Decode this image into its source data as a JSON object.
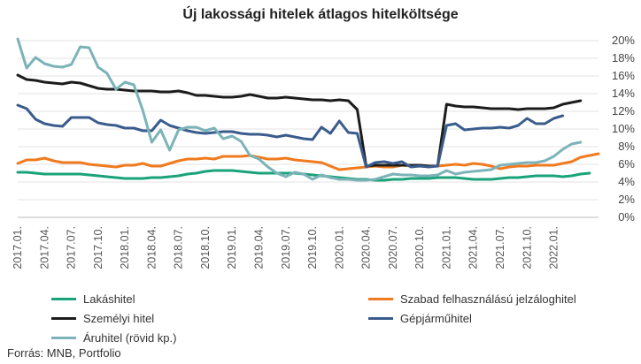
{
  "title": "Új lakossági hitelek átlagos hitelköltsége",
  "source": "Forrás: MNB, Portfolio",
  "chart_data": {
    "type": "line",
    "ylim": [
      0,
      20
    ],
    "yticks": [
      "0%",
      "2%",
      "4%",
      "6%",
      "8%",
      "10%",
      "12%",
      "14%",
      "16%",
      "18%",
      "20%"
    ],
    "xtick_labels": [
      "2017.01.",
      "2017.04.",
      "2017.07.",
      "2017.10.",
      "2018.01.",
      "2018.04.",
      "2018.07.",
      "2018.10.",
      "2019.01.",
      "2019.04.",
      "2019.07.",
      "2019.10.",
      "2020.01.",
      "2020.04.",
      "2020.07.",
      "2020.10.",
      "2021.01.",
      "2021.04.",
      "2021.07.",
      "2021.10.",
      "2022.01."
    ],
    "grid": true,
    "legend_position": "bottom",
    "series": [
      {
        "name": "Lakáshitel",
        "color": "#1aa37a",
        "values": [
          5.1,
          5.1,
          5.0,
          4.9,
          4.9,
          4.9,
          4.9,
          4.9,
          4.8,
          4.7,
          4.6,
          4.5,
          4.4,
          4.4,
          4.4,
          4.5,
          4.5,
          4.6,
          4.7,
          4.9,
          5.0,
          5.2,
          5.3,
          5.3,
          5.3,
          5.2,
          5.1,
          5.0,
          5.0,
          5.0,
          5.0,
          5.0,
          4.9,
          4.8,
          4.7,
          4.6,
          4.5,
          4.4,
          4.3,
          4.3,
          4.2,
          4.2,
          4.3,
          4.3,
          4.4,
          4.4,
          4.4,
          4.5,
          4.5,
          4.5,
          4.4,
          4.3,
          4.3,
          4.3,
          4.4,
          4.5,
          4.5,
          4.6,
          4.7,
          4.7,
          4.7,
          4.6,
          4.7,
          4.9,
          5.0
        ]
      },
      {
        "name": "Szabad felhasználású jelzáloghitel",
        "color": "#f07a1e",
        "values": [
          6.1,
          6.5,
          6.5,
          6.7,
          6.4,
          6.2,
          6.2,
          6.2,
          6.0,
          5.9,
          5.8,
          5.7,
          5.9,
          5.9,
          6.1,
          5.8,
          5.8,
          6.1,
          6.4,
          6.6,
          6.6,
          6.7,
          6.6,
          6.9,
          6.9,
          6.9,
          7.0,
          6.8,
          6.6,
          6.6,
          6.7,
          6.5,
          6.4,
          6.3,
          6.2,
          5.8,
          5.4,
          5.5,
          5.6,
          5.7,
          5.8,
          5.7,
          5.7,
          5.9,
          5.8,
          5.9,
          5.8,
          5.8,
          5.9,
          6.0,
          5.9,
          6.1,
          6.0,
          5.8,
          5.5,
          5.7,
          5.8,
          5.8,
          5.9,
          5.9,
          5.9,
          6.1,
          6.3,
          6.8,
          7.0,
          7.2
        ]
      },
      {
        "name": "Személyi hitel",
        "color": "#1c1c1c",
        "values": [
          16.1,
          15.6,
          15.5,
          15.3,
          15.2,
          15.1,
          15.3,
          15.2,
          14.9,
          14.6,
          14.5,
          14.5,
          14.4,
          14.3,
          14.3,
          14.3,
          14.2,
          14.2,
          14.3,
          14.1,
          13.8,
          13.8,
          13.7,
          13.6,
          13.6,
          13.7,
          13.9,
          13.7,
          13.5,
          13.5,
          13.6,
          13.5,
          13.4,
          13.3,
          13.3,
          13.2,
          13.3,
          13.2,
          12.2,
          5.8,
          5.9,
          5.9,
          5.9,
          5.9,
          5.9,
          5.9,
          5.8,
          5.8,
          12.8,
          12.6,
          12.5,
          12.5,
          12.4,
          12.3,
          12.3,
          12.3,
          12.2,
          12.3,
          12.3,
          12.3,
          12.4,
          12.8,
          13.0,
          13.2
        ]
      },
      {
        "name": "Gépjárműhitel",
        "color": "#3a5c8c",
        "values": [
          12.7,
          12.3,
          11.1,
          10.6,
          10.4,
          10.3,
          11.3,
          11.3,
          11.3,
          10.7,
          10.5,
          10.4,
          10.1,
          10.1,
          9.8,
          9.8,
          11.0,
          10.4,
          10.1,
          9.8,
          9.6,
          9.5,
          9.6,
          9.7,
          9.7,
          9.5,
          9.4,
          9.4,
          9.3,
          9.1,
          9.3,
          9.1,
          8.9,
          8.8,
          10.2,
          9.5,
          10.9,
          9.6,
          9.5,
          5.7,
          6.2,
          6.3,
          6.1,
          6.3,
          5.7,
          5.8,
          5.7,
          5.8,
          10.4,
          10.6,
          9.9,
          10.0,
          10.1,
          10.1,
          10.2,
          10.1,
          10.4,
          11.2,
          10.6,
          10.6,
          11.2,
          11.5
        ]
      },
      {
        "name": "Áruhitel (rövid kp.)",
        "color": "#7cb3b8",
        "values": [
          20.2,
          16.9,
          18.1,
          17.4,
          17.1,
          17.0,
          17.3,
          19.3,
          19.2,
          17.0,
          16.3,
          14.5,
          15.3,
          15.0,
          12.1,
          8.5,
          9.9,
          7.6,
          9.9,
          10.2,
          10.2,
          9.8,
          10.1,
          8.9,
          9.2,
          8.6,
          7.0,
          6.6,
          5.7,
          5.0,
          4.6,
          5.1,
          4.9,
          4.3,
          4.8,
          4.5,
          4.3,
          4.3,
          4.2,
          4.2,
          4.3,
          4.6,
          4.9,
          4.8,
          4.8,
          4.7,
          4.7,
          4.8,
          5.3,
          4.9,
          5.1,
          5.2,
          5.3,
          5.4,
          5.9,
          6.0,
          6.1,
          6.2,
          6.2,
          6.4,
          6.9,
          7.7,
          8.3,
          8.5
        ]
      }
    ]
  }
}
